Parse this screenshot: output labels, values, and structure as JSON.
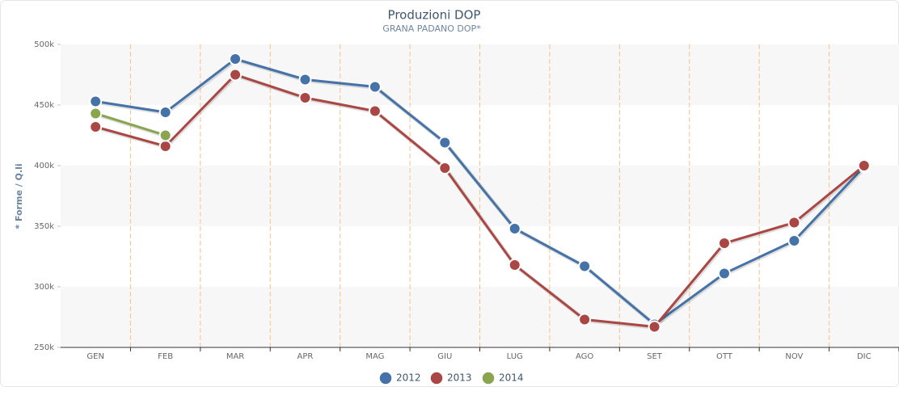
{
  "chart_data": {
    "type": "line",
    "title": "Produzioni DOP",
    "subtitle": "GRANA PADANO DOP*",
    "y_label": "* Forme / Q.li",
    "categories": [
      "GEN",
      "FEB",
      "MAR",
      "APR",
      "MAG",
      "GIU",
      "LUG",
      "AGO",
      "SET",
      "OTT",
      "NOV",
      "DIC"
    ],
    "series": [
      {
        "name": "2012",
        "color": "#4572a7",
        "values": [
          453000,
          444000,
          488000,
          471000,
          465000,
          419000,
          348000,
          317000,
          269000,
          311000,
          338000,
          399000
        ]
      },
      {
        "name": "2013",
        "color": "#aa4643",
        "values": [
          432000,
          416000,
          475000,
          456000,
          445000,
          398000,
          318000,
          273000,
          267000,
          336000,
          353000,
          400000
        ]
      },
      {
        "name": "2014",
        "color": "#89a54e",
        "values": [
          443000,
          425000,
          null,
          null,
          null,
          null,
          null,
          null,
          null,
          null,
          null,
          null
        ]
      }
    ],
    "ylim": [
      250000,
      500000
    ],
    "yticks": [
      {
        "value": 250000,
        "label": "250k"
      },
      {
        "value": 300000,
        "label": "300k"
      },
      {
        "value": 350000,
        "label": "350k"
      },
      {
        "value": 400000,
        "label": "400k"
      },
      {
        "value": 450000,
        "label": "450k"
      },
      {
        "value": 500000,
        "label": "500k"
      }
    ],
    "grid": true,
    "legend": "bottom"
  }
}
